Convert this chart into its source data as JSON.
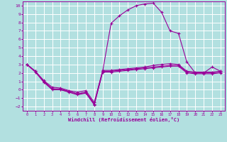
{
  "xlabel": "Windchill (Refroidissement éolien,°C)",
  "background_color": "#b2e0e0",
  "grid_color": "#ffffff",
  "line_color": "#990099",
  "xlim": [
    -0.5,
    23.5
  ],
  "ylim": [
    -2.5,
    10.5
  ],
  "xticks": [
    0,
    1,
    2,
    3,
    4,
    5,
    6,
    7,
    8,
    9,
    10,
    11,
    12,
    13,
    14,
    15,
    16,
    17,
    18,
    19,
    20,
    21,
    22,
    23
  ],
  "yticks": [
    -2,
    -1,
    0,
    1,
    2,
    3,
    4,
    5,
    6,
    7,
    8,
    9,
    10
  ],
  "line1_x": [
    0,
    1,
    2,
    3,
    4,
    5,
    6,
    7,
    8,
    9,
    10,
    11,
    12,
    13,
    14,
    15,
    16,
    17,
    18,
    19,
    20,
    21,
    22,
    23
  ],
  "line1_y": [
    3.0,
    2.2,
    1.0,
    0.1,
    0.1,
    -0.2,
    -0.5,
    -0.3,
    -1.7,
    2.2,
    2.2,
    2.3,
    2.4,
    2.5,
    2.6,
    2.7,
    2.8,
    2.9,
    2.9,
    2.1,
    2.0,
    2.0,
    2.0,
    2.1
  ],
  "line2_x": [
    0,
    1,
    2,
    3,
    4,
    5,
    6,
    7,
    8,
    9,
    10,
    11,
    12,
    13,
    14,
    15,
    16,
    17,
    18,
    19,
    20,
    21,
    22,
    23
  ],
  "line2_y": [
    3.0,
    2.2,
    1.1,
    0.3,
    0.2,
    -0.1,
    -0.3,
    -0.1,
    -1.5,
    2.3,
    2.3,
    2.4,
    2.5,
    2.6,
    2.7,
    2.9,
    3.0,
    3.1,
    3.0,
    2.2,
    2.1,
    2.1,
    2.1,
    2.2
  ],
  "line3_x": [
    0,
    1,
    2,
    3,
    4,
    5,
    6,
    7,
    8,
    9,
    10,
    11,
    12,
    13,
    14,
    15,
    16,
    17,
    18,
    19,
    20,
    21,
    22,
    23
  ],
  "line3_y": [
    3.0,
    2.1,
    0.9,
    0.0,
    0.0,
    -0.3,
    -0.6,
    -0.4,
    -1.8,
    2.1,
    2.1,
    2.2,
    2.3,
    2.4,
    2.5,
    2.6,
    2.7,
    2.8,
    2.8,
    2.0,
    1.9,
    1.9,
    1.9,
    2.0
  ],
  "line4_x": [
    0,
    1,
    2,
    3,
    4,
    5,
    6,
    7,
    8,
    9,
    10,
    11,
    12,
    13,
    14,
    15,
    16,
    17,
    18,
    19,
    20,
    21,
    22,
    23
  ],
  "line4_y": [
    3.0,
    2.2,
    1.0,
    0.1,
    0.0,
    -0.2,
    -0.5,
    -0.3,
    -1.7,
    2.2,
    7.9,
    8.8,
    9.5,
    10.0,
    10.2,
    10.3,
    9.2,
    7.0,
    6.7,
    3.3,
    2.0,
    2.0,
    2.7,
    2.2
  ]
}
